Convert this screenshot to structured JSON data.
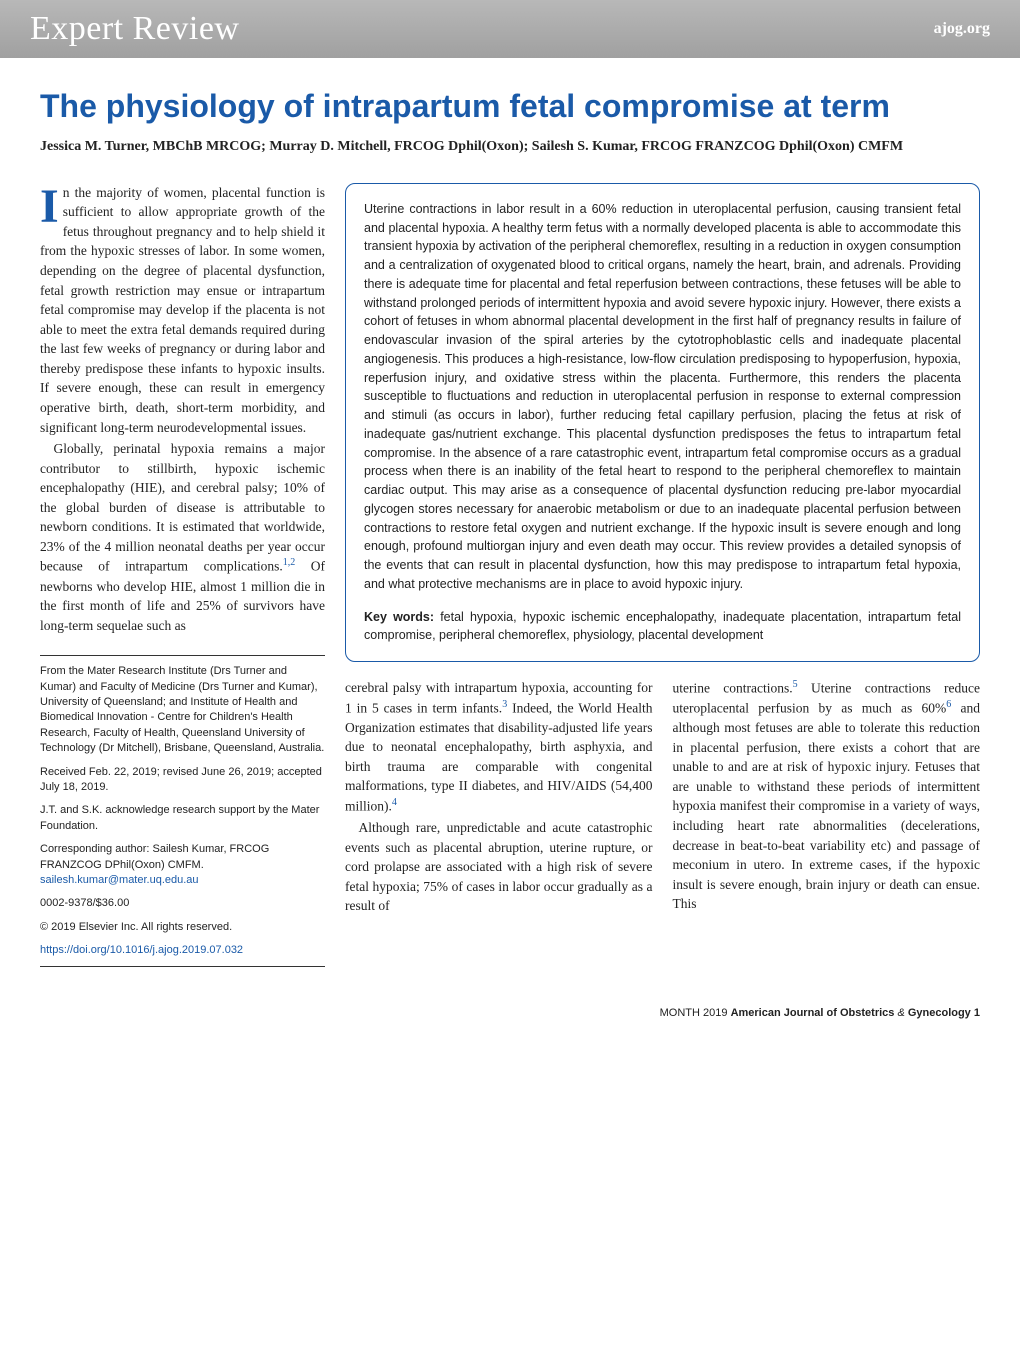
{
  "header": {
    "section_title": "Expert Review",
    "site": "ajog.org"
  },
  "article": {
    "title": "The physiology of intrapartum fetal compromise at term",
    "authors": "Jessica M. Turner, MBChB MRCOG; Murray D. Mitchell, FRCOG Dphil(Oxon); Sailesh S. Kumar, FRCOG FRANZCOG Dphil(Oxon) CMFM"
  },
  "intro": {
    "dropcap": "I",
    "para1_after_cap": "n the majority of women, placental function is sufficient to allow appropriate growth of the fetus throughout pregnancy and to help shield it from the hypoxic stresses of labor. In some women, depending on the degree of placental dysfunction, fetal growth restriction may ensue or intrapartum fetal compromise may develop if the placenta is not able to meet the extra fetal demands required during the last few weeks of pregnancy or during labor and thereby predispose these infants to hypoxic insults. If severe enough, these can result in emergency operative birth, death, short-term morbidity, and significant long-term neurodevelopmental issues.",
    "para2_part1": "Globally, perinatal hypoxia remains a major contributor to stillbirth, hypoxic ischemic encephalopathy (HIE), and cerebral palsy; 10% of the global burden of disease is attributable to newborn conditions. It is estimated that worldwide, 23% of the 4 million neonatal deaths per year occur because of intrapartum complications.",
    "ref12": "1,2",
    "para2_part2": " Of newborns who develop HIE, almost 1 million die in the first month of life and 25% of survivors have long-term sequelae such as"
  },
  "abstract": {
    "text": "Uterine contractions in labor result in a 60% reduction in uteroplacental perfusion, causing transient fetal and placental hypoxia. A healthy term fetus with a normally developed placenta is able to accommodate this transient hypoxia by activation of the peripheral chemoreflex, resulting in a reduction in oxygen consumption and a centralization of oxygenated blood to critical organs, namely the heart, brain, and adrenals. Providing there is adequate time for placental and fetal reperfusion between contractions, these fetuses will be able to withstand prolonged periods of intermittent hypoxia and avoid severe hypoxic injury. However, there exists a cohort of fetuses in whom abnormal placental development in the first half of pregnancy results in failure of endovascular invasion of the spiral arteries by the cytotrophoblastic cells and inadequate placental angiogenesis. This produces a high-resistance, low-flow circulation predisposing to hypoperfusion, hypoxia, reperfusion injury, and oxidative stress within the placenta. Furthermore, this renders the placenta susceptible to fluctuations and reduction in uteroplacental perfusion in response to external compression and stimuli (as occurs in labor), further reducing fetal capillary perfusion, placing the fetus at risk of inadequate gas/nutrient exchange. This placental dysfunction predisposes the fetus to intrapartum fetal compromise. In the absence of a rare catastrophic event, intrapartum fetal compromise occurs as a gradual process when there is an inability of the fetal heart to respond to the peripheral chemoreflex to maintain cardiac output. This may arise as a consequence of placental dysfunction reducing pre-labor myocardial glycogen stores necessary for anaerobic metabolism or due to an inadequate placental perfusion between contractions to restore fetal oxygen and nutrient exchange. If the hypoxic insult is severe enough and long enough, profound multiorgan injury and even death may occur. This review provides a detailed synopsis of the events that can result in placental dysfunction, how this may predispose to intrapartum fetal hypoxia, and what protective mechanisms are in place to avoid hypoxic injury.",
    "keywords_label": "Key words:",
    "keywords": " fetal hypoxia, hypoxic ischemic encephalopathy, inadequate placentation, intrapartum fetal compromise, peripheral chemoreflex, physiology, placental development"
  },
  "affiliations": {
    "from": "From the Mater Research Institute (Drs Turner and Kumar) and Faculty of Medicine (Drs Turner and Kumar), University of Queensland; and Institute of Health and Biomedical Innovation - Centre for Children's Health Research, Faculty of Health, Queensland University of Technology (Dr Mitchell), Brisbane, Queensland, Australia.",
    "received": "Received Feb. 22, 2019; revised June 26, 2019; accepted July 18, 2019.",
    "acknowledge": "J.T. and S.K. acknowledge research support by the Mater Foundation.",
    "corresponding": "Corresponding author: Sailesh Kumar, FRCOG FRANZCOG DPhil(Oxon) CMFM. ",
    "email": "sailesh.kumar@mater.uq.edu.au",
    "issn": "0002-9378/$36.00",
    "copyright": "© 2019 Elsevier Inc. All rights reserved.",
    "doi": "https://doi.org/10.1016/j.ajog.2019.07.032"
  },
  "bottom": {
    "col1_part1": "cerebral palsy with intrapartum hypoxia, accounting for 1 in 5 cases in term infants.",
    "ref3": "3",
    "col1_part2": " Indeed, the World Health Organization estimates that disability-adjusted life years due to neonatal encephalopathy, birth asphyxia, and birth trauma are comparable with congenital malformations, type II diabetes, and HIV/AIDS (54,400 million).",
    "ref4": "4",
    "col1_para2": "Although rare, unpredictable and acute catastrophic events such as placental abruption, uterine rupture, or cord prolapse are associated with a high risk of severe fetal hypoxia; 75% of cases in labor occur gradually as a result of",
    "col2_part1": "uterine contractions.",
    "ref5": "5",
    "col2_part2": " Uterine contractions reduce uteroplacental perfusion by as much as 60%",
    "ref6": "6",
    "col2_part3": " and although most fetuses are able to tolerate this reduction in placental perfusion, there exists a cohort that are unable to and are at risk of hypoxic injury. Fetuses that are unable to withstand these periods of intermittent hypoxia manifest their compromise in a variety of ways, including heart rate abnormalities (decelerations, decrease in beat-to-beat variability etc) and passage of meconium in utero. In extreme cases, if the hypoxic insult is severe enough, brain injury or death can ensue. This"
  },
  "footer": {
    "month": "MONTH 2019",
    "journal": "American Journal of Obstetrics",
    "amp": " & ",
    "journal2": "Gynecology",
    "page": "1"
  },
  "colors": {
    "accent": "#1a5aa8",
    "header_bg_top": "#b8b8b8",
    "header_bg_bottom": "#a0a0a0",
    "text": "#222222",
    "background": "#ffffff"
  }
}
